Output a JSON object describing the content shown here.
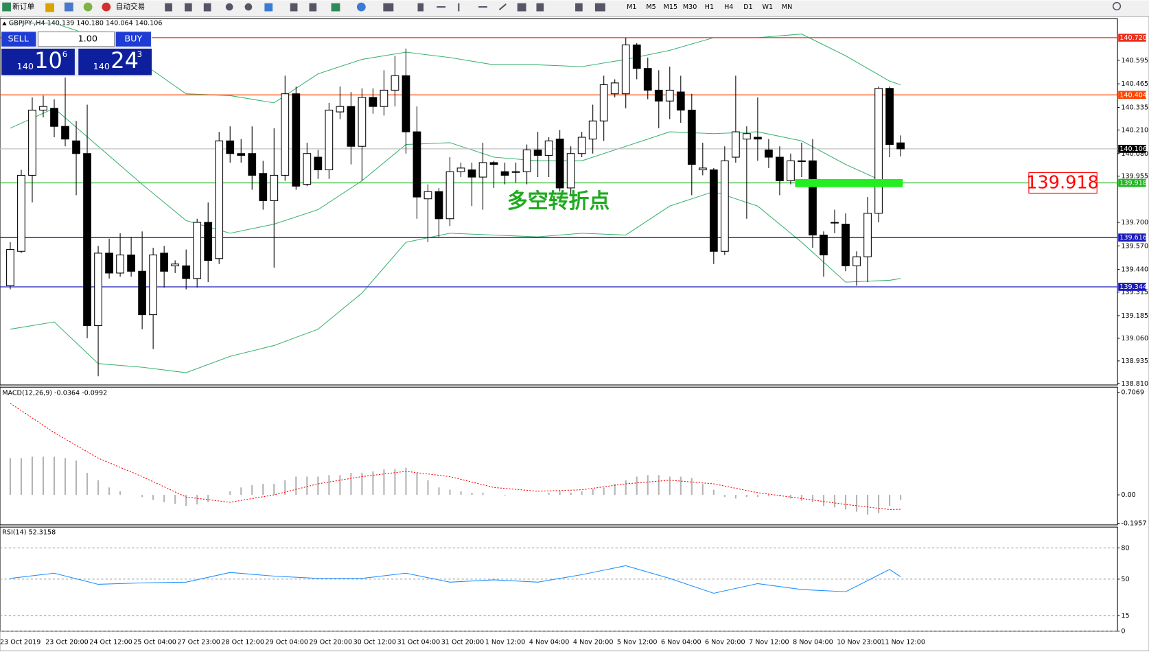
{
  "toolbar": {
    "new_order": "新订单",
    "auto_trading": "自动交易",
    "timeframes": [
      "M1",
      "M5",
      "M15",
      "M30",
      "H1",
      "H4",
      "D1",
      "W1",
      "MN"
    ]
  },
  "trade_panel": {
    "sell": "SELL",
    "buy": "BUY",
    "lot": "1.00",
    "sell_big": "140",
    "sell_pips": "10",
    "sell_point": "6",
    "buy_big": "140",
    "buy_pips": "24",
    "buy_point": "3"
  },
  "chart_data": [
    {
      "type": "candlestick",
      "title": "GBPJPY-,H4 140.139 140.180 140.064 140.106",
      "ylim": [
        138.802,
        140.825
      ],
      "yticks": [
        140.595,
        140.465,
        140.335,
        {
          "value": 140.21,
          "label": "140.210"
        },
        {
          "value": 140.08,
          "label": "140.080"
        },
        139.955,
        {
          "value": 139.7,
          "label": "139.700"
        },
        {
          "value": 139.57,
          "label": "139.570"
        },
        {
          "value": 139.44,
          "label": "139.440"
        },
        139.315,
        139.185,
        {
          "value": 139.06,
          "label": "139.060"
        },
        138.935,
        {
          "value": 138.81,
          "label": "138.810"
        }
      ],
      "x_labels": [
        "23 Oct 2019",
        "23 Oct 20:00",
        "24 Oct 12:00",
        "25 Oct 04:00",
        "27 Oct 23:00",
        "28 Oct 12:00",
        "29 Oct 04:00",
        "29 Oct 20:00",
        "30 Oct 12:00",
        "31 Oct 04:00",
        "31 Oct 20:00",
        "1 Nov 12:00",
        "4 Nov 04:00",
        "4 Nov 20:00",
        "5 Nov 12:00",
        "6 Nov 04:00",
        "6 Nov 20:00",
        "7 Nov 12:00",
        "8 Nov 04:00",
        "10 Nov 23:00",
        "11 Nov 12:00"
      ],
      "ohlc": [
        [
          139.35,
          139.59,
          139.33,
          139.55
        ],
        [
          139.54,
          139.99,
          139.53,
          139.96
        ],
        [
          139.96,
          140.39,
          139.81,
          140.32
        ],
        [
          140.32,
          140.4,
          140.28,
          140.34
        ],
        [
          140.33,
          140.38,
          140.17,
          140.23
        ],
        [
          140.23,
          140.5,
          140.12,
          140.16
        ],
        [
          140.15,
          140.26,
          139.85,
          140.08
        ],
        [
          140.08,
          140.35,
          139.06,
          139.13
        ],
        [
          139.13,
          139.57,
          138.85,
          139.53
        ],
        [
          139.53,
          139.61,
          139.39,
          139.42
        ],
        [
          139.42,
          139.64,
          139.4,
          139.52
        ],
        [
          139.52,
          139.62,
          139.4,
          139.43
        ],
        [
          139.43,
          139.65,
          139.11,
          139.19
        ],
        [
          139.19,
          139.56,
          139.0,
          139.52
        ],
        [
          139.53,
          139.57,
          139.34,
          139.43
        ],
        [
          139.46,
          139.49,
          139.42,
          139.47
        ],
        [
          139.46,
          139.55,
          139.33,
          139.39
        ],
        [
          139.39,
          139.72,
          139.34,
          139.7
        ],
        [
          139.7,
          139.81,
          139.37,
          139.49
        ],
        [
          139.5,
          140.2,
          139.47,
          140.15
        ],
        [
          140.15,
          140.23,
          140.03,
          140.08
        ],
        [
          140.08,
          140.16,
          140.03,
          140.07
        ],
        [
          140.08,
          140.23,
          139.88,
          139.96
        ],
        [
          139.97,
          140.04,
          139.77,
          139.82
        ],
        [
          139.82,
          140.22,
          139.45,
          139.96
        ],
        [
          139.96,
          140.51,
          139.93,
          140.41
        ],
        [
          140.41,
          140.45,
          139.88,
          139.9
        ],
        [
          139.91,
          140.14,
          139.9,
          140.08
        ],
        [
          140.06,
          140.1,
          139.94,
          139.99
        ],
        [
          139.99,
          140.36,
          139.94,
          140.32
        ],
        [
          140.31,
          140.45,
          140.27,
          140.34
        ],
        [
          140.34,
          140.42,
          140.02,
          140.12
        ],
        [
          140.12,
          140.44,
          139.93,
          140.39
        ],
        [
          140.39,
          140.44,
          140.3,
          140.34
        ],
        [
          140.34,
          140.54,
          140.29,
          140.43
        ],
        [
          140.43,
          140.62,
          140.34,
          140.51
        ],
        [
          140.51,
          140.66,
          140.08,
          140.2
        ],
        [
          140.2,
          140.34,
          139.72,
          139.84
        ],
        [
          139.83,
          139.91,
          139.59,
          139.87
        ],
        [
          139.87,
          139.89,
          139.62,
          139.72
        ],
        [
          139.72,
          140.06,
          139.68,
          139.98
        ],
        [
          139.98,
          140.03,
          139.95,
          140.0
        ],
        [
          139.99,
          140.03,
          139.79,
          139.95
        ],
        [
          139.95,
          140.14,
          139.77,
          140.03
        ],
        [
          140.03,
          140.04,
          139.89,
          140.02
        ],
        [
          139.98,
          140.03,
          139.91,
          139.96
        ],
        [
          139.98,
          140.03,
          139.92,
          139.98
        ],
        [
          139.98,
          140.13,
          139.91,
          140.1
        ],
        [
          140.1,
          140.2,
          139.95,
          140.07
        ],
        [
          140.07,
          140.17,
          139.95,
          140.15
        ],
        [
          140.16,
          140.21,
          139.87,
          139.89
        ],
        [
          139.89,
          140.12,
          139.85,
          140.08
        ],
        [
          140.08,
          140.2,
          140.06,
          140.17
        ],
        [
          140.16,
          140.35,
          140.08,
          140.26
        ],
        [
          140.26,
          140.51,
          140.15,
          140.46
        ],
        [
          140.41,
          140.49,
          140.39,
          140.47
        ],
        [
          140.41,
          140.72,
          140.33,
          140.68
        ],
        [
          140.68,
          140.69,
          140.49,
          140.55
        ],
        [
          140.55,
          140.61,
          140.38,
          140.43
        ],
        [
          140.43,
          140.54,
          140.22,
          140.37
        ],
        [
          140.37,
          140.56,
          140.27,
          140.43
        ],
        [
          140.42,
          140.51,
          140.25,
          140.32
        ],
        [
          140.32,
          140.41,
          139.85,
          140.02
        ],
        [
          139.99,
          140.14,
          139.96,
          140.0
        ],
        [
          139.99,
          140.0,
          139.47,
          139.54
        ],
        [
          139.54,
          140.12,
          139.52,
          140.04
        ],
        [
          140.06,
          140.51,
          140.03,
          140.2
        ],
        [
          140.16,
          140.23,
          139.72,
          140.19
        ],
        [
          140.17,
          140.39,
          140.04,
          140.16
        ],
        [
          140.1,
          140.16,
          140.0,
          140.06
        ],
        [
          140.06,
          140.12,
          139.85,
          139.93
        ],
        [
          139.93,
          140.08,
          139.91,
          140.04
        ],
        [
          140.04,
          140.14,
          139.95,
          140.04
        ],
        [
          140.04,
          140.16,
          139.56,
          139.63
        ],
        [
          139.63,
          139.65,
          139.4,
          139.52
        ],
        [
          139.7,
          139.77,
          139.64,
          139.7
        ],
        [
          139.69,
          139.75,
          139.43,
          139.46
        ],
        [
          139.46,
          139.54,
          139.35,
          139.51
        ],
        [
          139.51,
          139.84,
          139.37,
          139.75
        ],
        [
          139.75,
          140.45,
          139.7,
          140.44
        ],
        [
          140.44,
          140.45,
          140.06,
          140.13
        ],
        [
          140.139,
          140.18,
          140.064,
          140.106
        ]
      ],
      "bands": {
        "color": "#3cb371",
        "x": [
          0,
          4,
          8,
          12,
          16,
          20,
          24,
          28,
          32,
          36,
          40,
          44,
          48,
          52,
          56,
          60,
          64,
          68,
          72,
          76,
          80,
          81
        ],
        "upper": [
          140.8,
          140.8,
          140.72,
          140.58,
          140.41,
          140.4,
          140.36,
          140.52,
          140.6,
          140.64,
          140.61,
          140.57,
          140.57,
          140.56,
          140.6,
          140.65,
          140.72,
          140.72,
          140.74,
          140.62,
          140.48,
          140.46
        ],
        "middle": [
          140.22,
          140.33,
          140.12,
          139.91,
          139.71,
          139.64,
          139.69,
          139.77,
          139.93,
          140.13,
          140.14,
          140.06,
          140.04,
          140.04,
          140.12,
          140.2,
          140.19,
          140.2,
          140.15,
          140.02,
          139.91,
          139.91
        ],
        "lower": [
          139.11,
          139.15,
          138.92,
          138.9,
          138.87,
          138.96,
          139.02,
          139.11,
          139.31,
          139.59,
          139.64,
          139.63,
          139.62,
          139.64,
          139.63,
          139.79,
          139.87,
          139.79,
          139.59,
          139.37,
          139.38,
          139.39
        ]
      },
      "levels": [
        {
          "value": 140.72,
          "label": "140.720",
          "color": "#e8321e",
          "box": "#e8321e"
        },
        {
          "value": 140.404,
          "color": "#ff4500",
          "box": "#ff4500"
        },
        {
          "value": 140.106,
          "color": "#c0c0c0",
          "box": "#000000"
        },
        {
          "value": 139.918,
          "color": "#22b822",
          "box": "#22b822"
        },
        {
          "value": 139.616,
          "color": "#1a1ab8",
          "box": "#1a1ab8"
        },
        {
          "value": 139.344,
          "color": "#1a1ab8",
          "box": "#1a1ab8"
        }
      ],
      "callout": {
        "value": 139.918,
        "color": "#ff0000"
      },
      "annotation": {
        "text": "多空转折点",
        "color": "#1faa1f"
      }
    },
    {
      "type": "macd",
      "title": "MACD(12,26,9) -0.0364 -0.0992",
      "ylim": [
        -0.207,
        0.742
      ],
      "yticks": [
        0.7069,
        {
          "value": 0,
          "label": "0.00"
        },
        -0.1957
      ],
      "histogram": {
        "color": "#b4b4b4",
        "values": [
          0.253,
          0.253,
          0.263,
          0.263,
          0.263,
          0.253,
          0.237,
          0.152,
          0.101,
          0.051,
          0.025,
          0,
          -0.015,
          -0.035,
          -0.051,
          -0.061,
          -0.076,
          -0.066,
          -0.051,
          0,
          0.025,
          0.051,
          0.066,
          0.076,
          0.076,
          0.101,
          0.126,
          0.126,
          0.126,
          0.136,
          0.136,
          0.152,
          0.152,
          0.162,
          0.177,
          0.177,
          0.187,
          0.152,
          0.101,
          0.051,
          0.035,
          0.025,
          0.015,
          0.015,
          0,
          -0.005,
          0,
          0,
          0,
          0.015,
          0.025,
          0.015,
          0.025,
          0.04,
          0.051,
          0.076,
          0.101,
          0.126,
          0.136,
          0.136,
          0.126,
          0.126,
          0.116,
          0.076,
          0.035,
          -0.015,
          -0.025,
          -0.015,
          -0.015,
          -0.01,
          -0.01,
          -0.025,
          -0.04,
          -0.051,
          -0.076,
          -0.086,
          -0.101,
          -0.116,
          -0.136,
          -0.126,
          -0.076,
          -0.0364
        ]
      },
      "signal": {
        "color": "#ff0000",
        "x": [
          0,
          4,
          8,
          12,
          16,
          20,
          24,
          28,
          32,
          36,
          40,
          44,
          48,
          52,
          56,
          60,
          64,
          68,
          72,
          76,
          80,
          81
        ],
        "values": [
          0.631,
          0.429,
          0.253,
          0.126,
          -0.015,
          -0.051,
          0,
          0.076,
          0.126,
          0.162,
          0.126,
          0.051,
          0.025,
          0.035,
          0.076,
          0.101,
          0.076,
          0.015,
          -0.025,
          -0.066,
          -0.101,
          -0.0992
        ]
      }
    },
    {
      "type": "line",
      "title": "RSI(14) 52.3158",
      "ylim": [
        0,
        100
      ],
      "yticks": [
        80,
        50,
        15,
        0
      ],
      "grid": true,
      "series": [
        {
          "color": "#1e90ff",
          "x": [
            0,
            4,
            8,
            12,
            16,
            20,
            24,
            28,
            32,
            36,
            40,
            44,
            48,
            52,
            56,
            60,
            64,
            68,
            72,
            76,
            80,
            81
          ],
          "values": [
            50.7,
            55.7,
            45.0,
            46.4,
            47.1,
            56.4,
            52.9,
            50.7,
            50.7,
            55.7,
            47.1,
            49.3,
            47.1,
            54.3,
            62.9,
            50.7,
            36.4,
            45.7,
            40.0,
            37.9,
            59.3,
            52.3158
          ]
        }
      ]
    }
  ]
}
